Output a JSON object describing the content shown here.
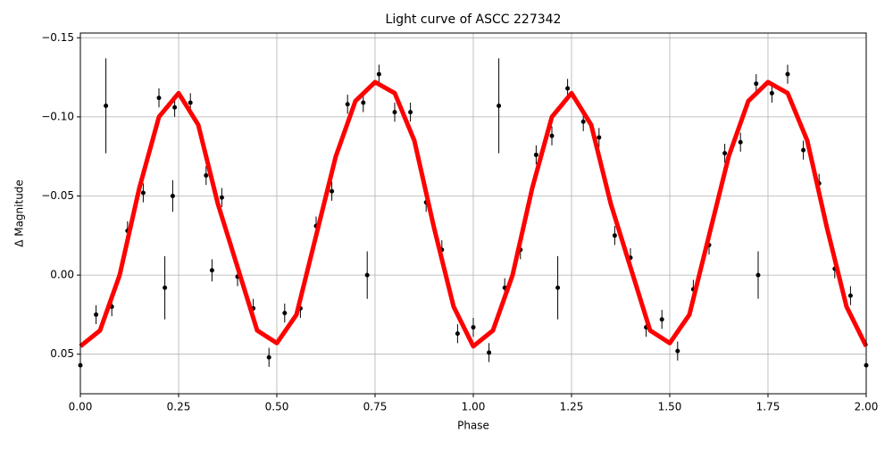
{
  "chart_data": {
    "type": "scatter",
    "title": "Light curve of ASCC 227342",
    "xlabel": "Phase",
    "ylabel": "Δ Magnitude",
    "xlim": [
      0,
      2
    ],
    "ylim": [
      0.075,
      -0.153
    ],
    "grid": true,
    "xticks": [
      {
        "value": 0,
        "label": "0.00"
      },
      {
        "value": 0.25,
        "label": "0.25"
      },
      {
        "value": 0.5,
        "label": "0.50"
      },
      {
        "value": 0.75,
        "label": "0.75"
      },
      {
        "value": 1,
        "label": "1.00"
      },
      {
        "value": 1.25,
        "label": "1.25"
      },
      {
        "value": 1.5,
        "label": "1.50"
      },
      {
        "value": 1.75,
        "label": "1.75"
      },
      {
        "value": 2,
        "label": "2.00"
      }
    ],
    "yticks": [
      {
        "value": -0.15,
        "label": "−0.15"
      },
      {
        "value": -0.1,
        "label": "−0.10"
      },
      {
        "value": -0.05,
        "label": "−0.05"
      },
      {
        "value": 0,
        "label": "0.00"
      },
      {
        "value": 0.05,
        "label": "0.05"
      }
    ],
    "series": [
      {
        "type": "errorbar",
        "color": "#000000",
        "x": [
          0,
          0.04,
          0.08,
          0.12,
          0.16,
          0.2,
          0.24,
          0.28,
          0.32,
          0.36,
          0.4,
          0.44,
          0.48,
          0.52,
          0.56,
          0.6,
          0.64,
          0.68,
          0.72,
          0.76,
          0.8,
          0.84,
          0.88,
          0.92,
          0.96,
          1,
          1.04,
          1.08,
          1.12,
          1.16,
          1.2,
          1.24,
          1.28,
          1.32,
          1.36,
          1.4,
          1.44,
          1.48,
          1.52,
          1.56,
          1.6,
          1.64,
          1.68,
          1.72,
          1.76,
          1.8,
          1.84,
          1.88,
          1.92,
          1.96,
          2,
          0.065,
          0.215,
          0.73,
          1.065,
          1.215,
          1.725,
          0.235,
          0.335
        ],
        "values": [
          0.057,
          0.025,
          0.02,
          -0.028,
          -0.052,
          -0.112,
          -0.106,
          -0.109,
          -0.063,
          -0.049,
          0.001,
          0.021,
          0.052,
          0.024,
          0.021,
          -0.031,
          -0.053,
          -0.108,
          -0.109,
          -0.127,
          -0.103,
          -0.103,
          -0.046,
          -0.016,
          0.037,
          0.033,
          0.049,
          0.008,
          -0.016,
          -0.076,
          -0.088,
          -0.118,
          -0.097,
          -0.087,
          -0.025,
          -0.011,
          0.033,
          0.028,
          0.048,
          0.009,
          -0.019,
          -0.077,
          -0.084,
          -0.121,
          -0.115,
          -0.127,
          -0.079,
          -0.058,
          -0.004,
          0.013,
          0.057,
          -0.107,
          0.008,
          0,
          -0.107,
          0.008,
          0,
          -0.05,
          -0.003
        ],
        "errors": [
          0.006,
          0.006,
          0.006,
          0.006,
          0.006,
          0.006,
          0.006,
          0.006,
          0.006,
          0.006,
          0.006,
          0.006,
          0.006,
          0.006,
          0.006,
          0.006,
          0.006,
          0.006,
          0.006,
          0.006,
          0.006,
          0.006,
          0.006,
          0.006,
          0.006,
          0.006,
          0.006,
          0.006,
          0.006,
          0.006,
          0.006,
          0.006,
          0.006,
          0.006,
          0.006,
          0.006,
          0.006,
          0.006,
          0.006,
          0.006,
          0.006,
          0.006,
          0.006,
          0.006,
          0.006,
          0.006,
          0.006,
          0.006,
          0.006,
          0.006,
          0.006,
          0.03,
          0.02,
          0.015,
          0.03,
          0.02,
          0.015,
          0.01,
          0.007
        ]
      },
      {
        "type": "line",
        "color": "#ff0000",
        "x": [
          0,
          0.05,
          0.1,
          0.15,
          0.2,
          0.25,
          0.3,
          0.35,
          0.4,
          0.45,
          0.5,
          0.55,
          0.6,
          0.65,
          0.7,
          0.75,
          0.8,
          0.85,
          0.9,
          0.95,
          1,
          1.05,
          1.1,
          1.15,
          1.2,
          1.25,
          1.3,
          1.35,
          1.4,
          1.45,
          1.5,
          1.55,
          1.6,
          1.65,
          1.7,
          1.75,
          1.8,
          1.85,
          1.9,
          1.95,
          2
        ],
        "values": [
          0.045,
          0.035,
          0,
          -0.055,
          -0.1,
          -0.115,
          -0.095,
          -0.045,
          -0.005,
          0.035,
          0.043,
          0.025,
          -0.025,
          -0.075,
          -0.11,
          -0.122,
          -0.115,
          -0.085,
          -0.03,
          0.02,
          0.045,
          0.035,
          0,
          -0.055,
          -0.1,
          -0.115,
          -0.095,
          -0.045,
          -0.005,
          0.035,
          0.043,
          0.025,
          -0.025,
          -0.075,
          -0.11,
          -0.122,
          -0.115,
          -0.085,
          -0.03,
          0.02,
          0.045
        ]
      }
    ]
  }
}
